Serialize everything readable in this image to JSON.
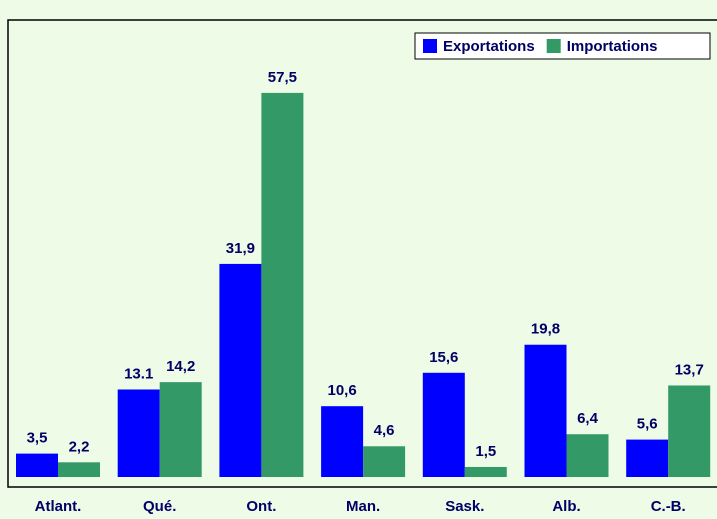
{
  "chart_data": {
    "type": "bar",
    "categories": [
      "Atlant.",
      "Qué.",
      "Ont.",
      "Man.",
      "Sask.",
      "Alb.",
      "C.-B."
    ],
    "series": [
      {
        "name": "Exportations",
        "color": "#0000ff",
        "values": [
          3.5,
          13.1,
          31.9,
          10.6,
          15.6,
          19.8,
          5.6
        ],
        "value_labels": [
          "3,5",
          "13.1",
          "31,9",
          "10,6",
          "15,6",
          "19,8",
          "5,6"
        ]
      },
      {
        "name": "Importations",
        "color": "#339966",
        "values": [
          2.2,
          14.2,
          57.5,
          4.6,
          1.5,
          6.4,
          13.7
        ],
        "value_labels": [
          "2,2",
          "14,2",
          "57,5",
          "4,6",
          "1,5",
          "6,4",
          "13,7"
        ]
      }
    ],
    "legend": "upper right"
  }
}
